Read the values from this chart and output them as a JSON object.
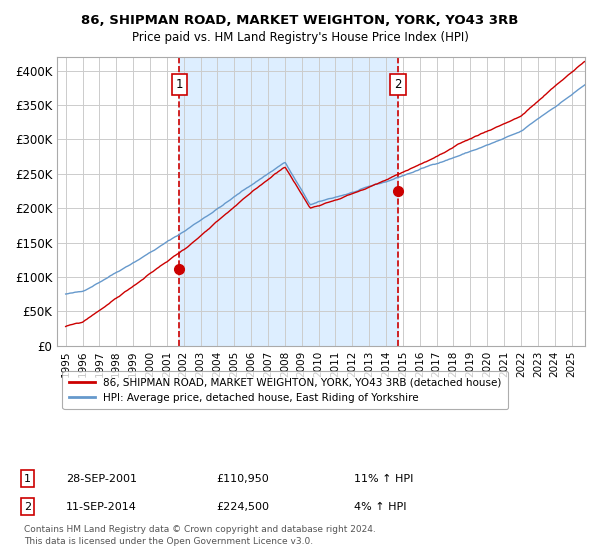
{
  "title_line1": "86, SHIPMAN ROAD, MARKET WEIGHTON, YORK, YO43 3RB",
  "title_line2": "Price paid vs. HM Land Registry's House Price Index (HPI)",
  "legend_line1": "86, SHIPMAN ROAD, MARKET WEIGHTON, YORK, YO43 3RB (detached house)",
  "legend_line2": "HPI: Average price, detached house, East Riding of Yorkshire",
  "annotation1_label": "1",
  "annotation1_date": "28-SEP-2001",
  "annotation1_price": "£110,950",
  "annotation1_hpi": "11% ↑ HPI",
  "annotation2_label": "2",
  "annotation2_date": "11-SEP-2014",
  "annotation2_price": "£224,500",
  "annotation2_hpi": "4% ↑ HPI",
  "footnote": "Contains HM Land Registry data © Crown copyright and database right 2024.\nThis data is licensed under the Open Government Licence v3.0.",
  "sale1_year": 2001.75,
  "sale1_value": 110950,
  "sale2_year": 2014.7,
  "sale2_value": 224500,
  "vline1_year": 2001.75,
  "vline2_year": 2014.7,
  "shaded_start": 2001.75,
  "shaded_end": 2014.7,
  "red_line_color": "#cc0000",
  "blue_line_color": "#6699cc",
  "shaded_color": "#ddeeff",
  "background_color": "#ffffff",
  "grid_color": "#cccccc",
  "ylim_min": 0,
  "ylim_max": 420000,
  "xlim_min": 1994.5,
  "xlim_max": 2025.8,
  "ytick_values": [
    0,
    50000,
    100000,
    150000,
    200000,
    250000,
    300000,
    350000,
    400000
  ],
  "ytick_labels": [
    "£0",
    "£50K",
    "£100K",
    "£150K",
    "£200K",
    "£250K",
    "£300K",
    "£350K",
    "£400K"
  ],
  "xtick_years": [
    1995,
    1996,
    1997,
    1998,
    1999,
    2000,
    2001,
    2002,
    2003,
    2004,
    2005,
    2006,
    2007,
    2008,
    2009,
    2010,
    2011,
    2012,
    2013,
    2014,
    2015,
    2016,
    2017,
    2018,
    2019,
    2020,
    2021,
    2022,
    2023,
    2024,
    2025
  ]
}
